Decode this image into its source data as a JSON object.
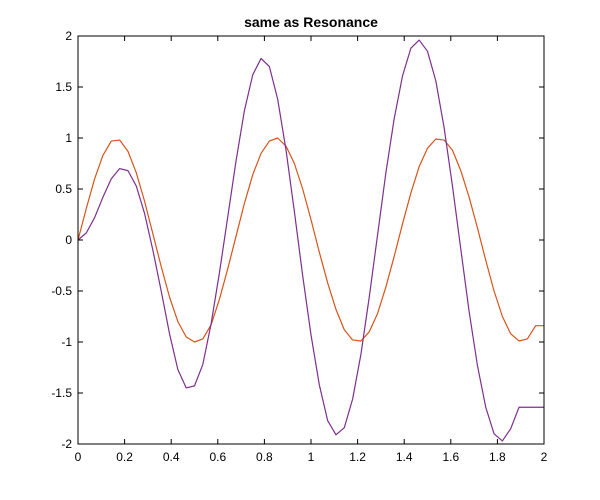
{
  "chart_data": {
    "type": "line",
    "title": "same as Resonance",
    "xlabel": "",
    "ylabel": "",
    "xlim": [
      0,
      2
    ],
    "ylim": [
      -2,
      2
    ],
    "x_ticks": [
      0,
      0.2,
      0.4,
      0.6,
      0.8,
      1,
      1.2,
      1.4,
      1.6,
      1.8,
      2
    ],
    "x_tick_labels": [
      "0",
      "0.2",
      "0.4",
      "0.6",
      "0.8",
      "1",
      "1.2",
      "1.4",
      "1.6",
      "1.8",
      "2"
    ],
    "y_ticks": [
      -2,
      -1.5,
      -1,
      -0.5,
      0,
      0.5,
      1,
      1.5,
      2
    ],
    "y_tick_labels": [
      "-2",
      "-1.5",
      "-1",
      "-0.5",
      "0",
      "0.5",
      "1",
      "1.5",
      "2"
    ],
    "grid": false,
    "series": [
      {
        "color": "#d95319",
        "x": [
          0,
          0.0357,
          0.0714,
          0.1071,
          0.1429,
          0.1786,
          0.2143,
          0.25,
          0.2857,
          0.3214,
          0.3571,
          0.3929,
          0.4286,
          0.4643,
          0.5,
          0.5357,
          0.5714,
          0.6071,
          0.6429,
          0.6786,
          0.7143,
          0.75,
          0.7857,
          0.8214,
          0.8571,
          0.8929,
          0.9286,
          0.9643,
          1,
          1.0357,
          1.0714,
          1.1071,
          1.1429,
          1.1786,
          1.2143,
          1.25,
          1.2857,
          1.3214,
          1.3571,
          1.3929,
          1.4286,
          1.4643,
          1.5,
          1.5357,
          1.5714,
          1.6071,
          1.6429,
          1.6786,
          1.7143,
          1.75,
          1.7857,
          1.8214,
          1.8571,
          1.8929,
          1.9286,
          1.9643,
          2
        ],
        "values": [
          0,
          0.31,
          0.6,
          0.83,
          0.97,
          0.98,
          0.87,
          0.66,
          0.38,
          0.06,
          -0.26,
          -0.56,
          -0.8,
          -0.95,
          -1.0,
          -0.97,
          -0.83,
          -0.58,
          -0.28,
          0.04,
          0.36,
          0.64,
          0.85,
          0.97,
          1.0,
          0.92,
          0.75,
          0.5,
          0.2,
          -0.12,
          -0.42,
          -0.68,
          -0.88,
          -0.98,
          -0.99,
          -0.9,
          -0.72,
          -0.46,
          -0.16,
          0.16,
          0.46,
          0.72,
          0.9,
          0.99,
          0.98,
          0.88,
          0.68,
          0.42,
          0.12,
          -0.2,
          -0.5,
          -0.75,
          -0.92,
          -0.99,
          -0.97,
          -0.84,
          -0.84
        ]
      },
      {
        "color": "#7e2f8e",
        "x": [
          0,
          0.0357,
          0.0714,
          0.1071,
          0.1429,
          0.1786,
          0.2143,
          0.25,
          0.2857,
          0.3214,
          0.3571,
          0.3929,
          0.4286,
          0.4643,
          0.5,
          0.5357,
          0.5714,
          0.6071,
          0.6429,
          0.6786,
          0.7143,
          0.75,
          0.7857,
          0.8214,
          0.8571,
          0.8929,
          0.9286,
          0.9643,
          1,
          1.0357,
          1.0714,
          1.1071,
          1.1429,
          1.1786,
          1.2143,
          1.25,
          1.2857,
          1.3214,
          1.3571,
          1.3929,
          1.4286,
          1.4643,
          1.5,
          1.5357,
          1.5714,
          1.6071,
          1.6429,
          1.6786,
          1.7143,
          1.75,
          1.7857,
          1.8214,
          1.8571,
          1.8929,
          1.9286,
          1.9643,
          2
        ],
        "values": [
          0,
          0.07,
          0.22,
          0.42,
          0.6,
          0.7,
          0.68,
          0.53,
          0.26,
          -0.1,
          -0.5,
          -0.92,
          -1.27,
          -1.45,
          -1.43,
          -1.22,
          -0.82,
          -0.32,
          0.23,
          0.78,
          1.27,
          1.62,
          1.78,
          1.7,
          1.38,
          0.88,
          0.28,
          -0.35,
          -0.93,
          -1.42,
          -1.77,
          -1.91,
          -1.84,
          -1.56,
          -1.12,
          -0.56,
          0.05,
          0.66,
          1.19,
          1.61,
          1.88,
          1.96,
          1.85,
          1.56,
          1.1,
          0.53,
          -0.09,
          -0.7,
          -1.23,
          -1.64,
          -1.9,
          -1.97,
          -1.85,
          -1.64,
          -1.64,
          -1.64,
          -1.64
        ]
      }
    ]
  }
}
